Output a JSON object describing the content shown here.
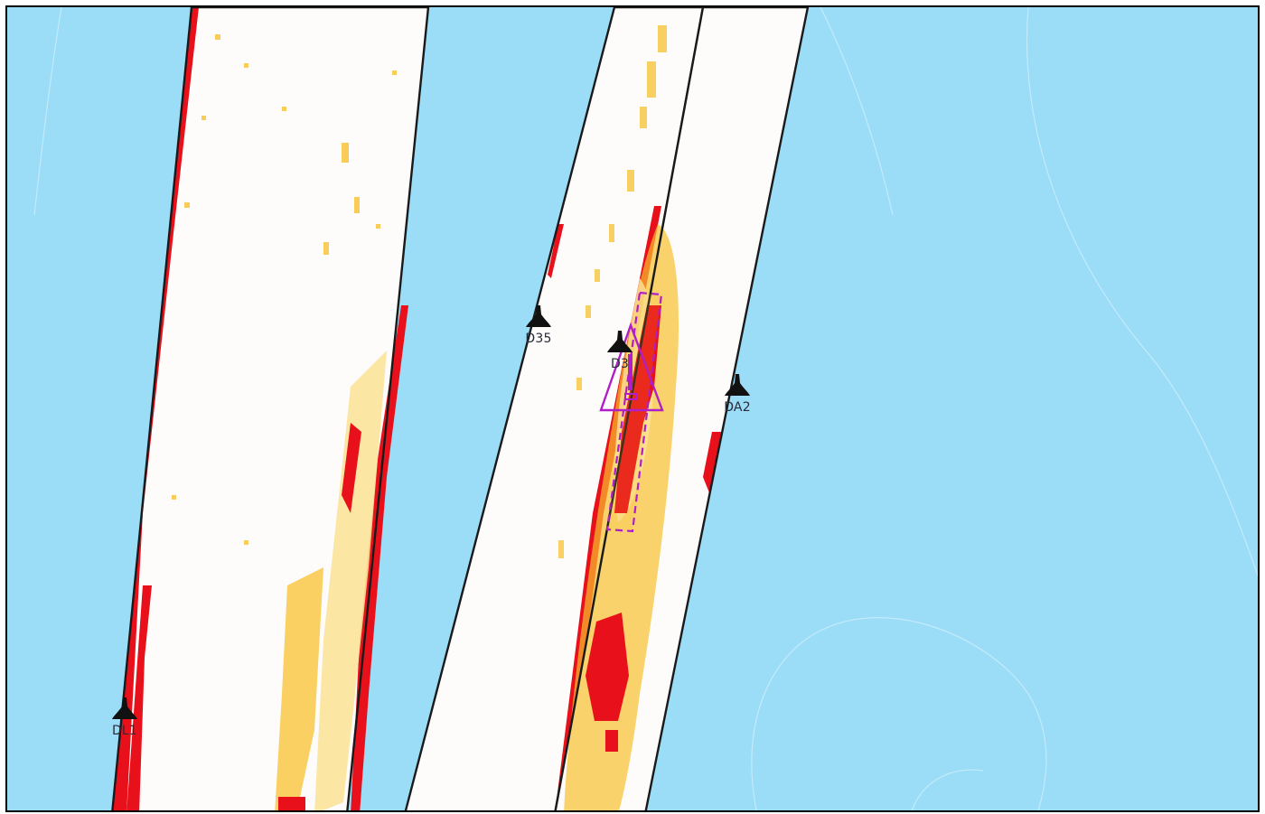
{
  "map": {
    "colors": {
      "water": "#9bdcf7",
      "channel": "#fdfcfa",
      "channel_outline": "#1a1a1a",
      "shallow_red": "#e8101a",
      "shallow_orange": "#f7c12e",
      "shallow_yellow": "#fbe39a",
      "warning_purple": "#b01ec8",
      "marker": "#111111"
    },
    "markers": [
      {
        "id": "DL1",
        "label": "DL1",
        "icon": "buoy-icon"
      },
      {
        "id": "D35",
        "label": "D35",
        "icon": "buoy-icon"
      },
      {
        "id": "D3x",
        "label": "D3",
        "icon": "buoy-icon"
      },
      {
        "id": "DA2",
        "label": "DA2",
        "icon": "buoy-icon"
      }
    ],
    "warning": {
      "icon": "warning-triangle-icon",
      "symbol": "!"
    }
  }
}
